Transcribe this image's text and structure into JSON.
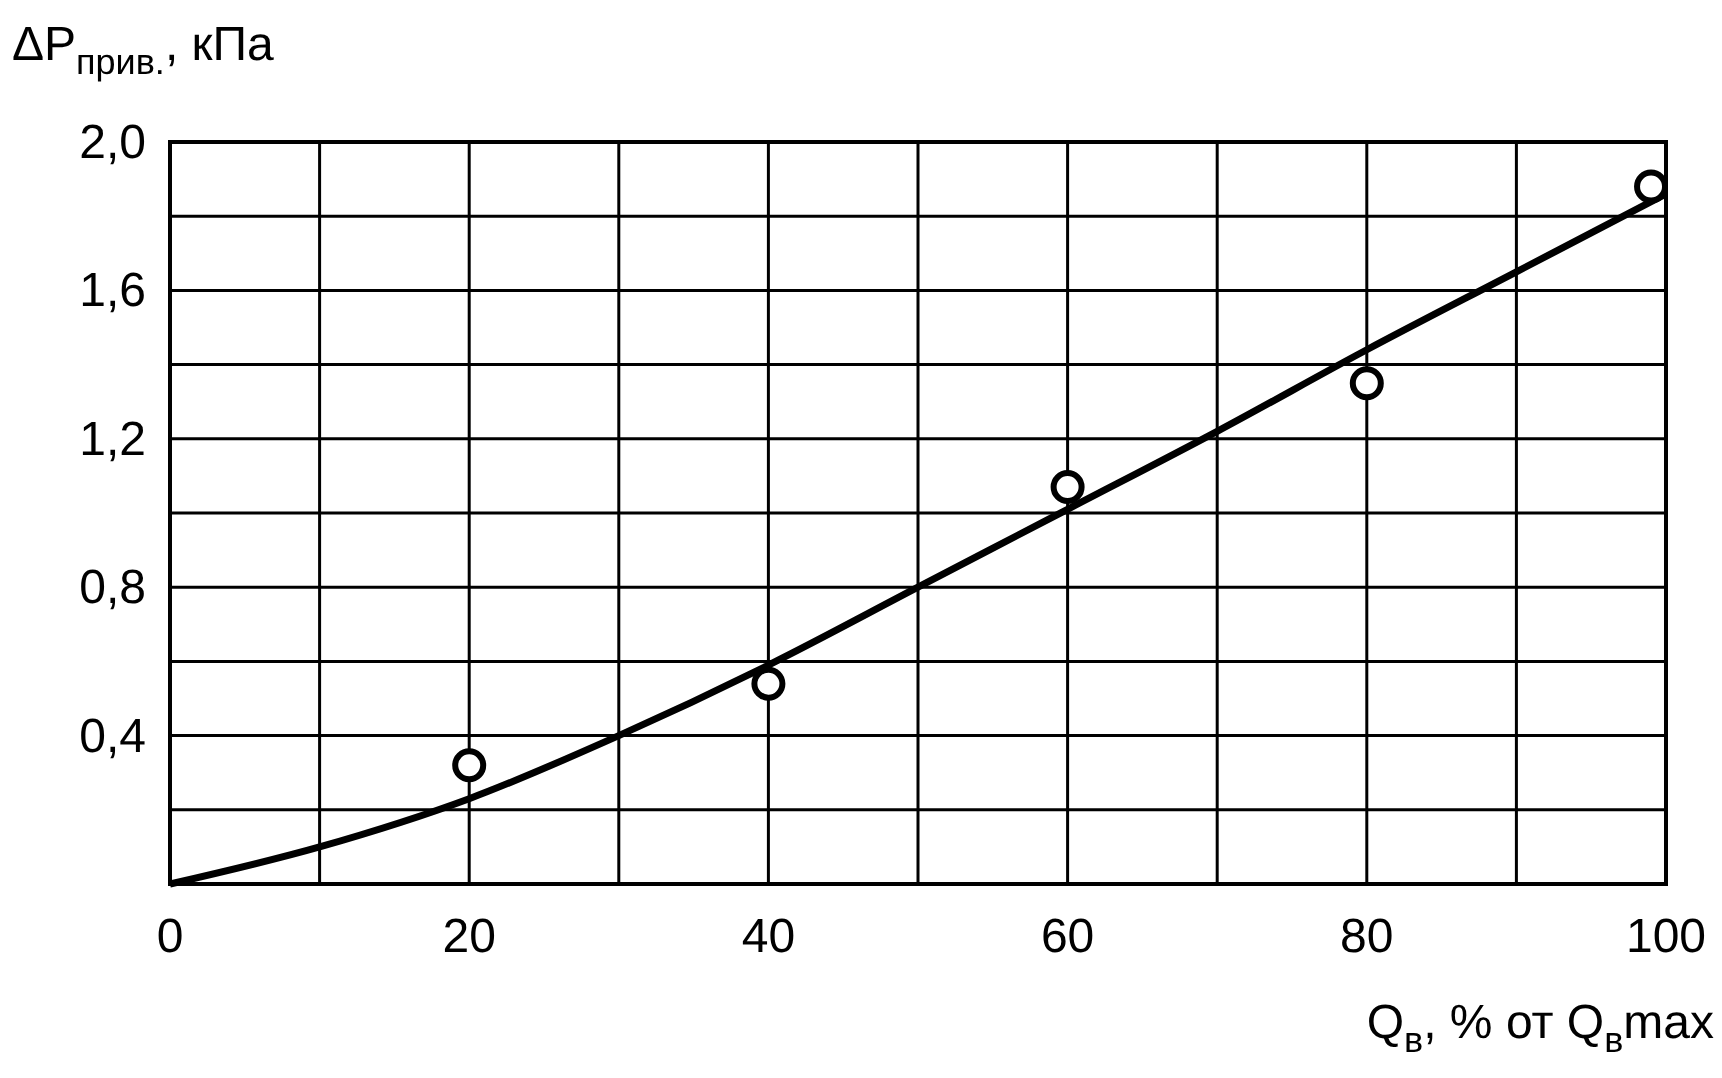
{
  "chart_data": {
    "type": "scatter",
    "xlabel": "Q$_{в}$, % от Q$_{в}$max",
    "ylabel": "ΔP$_{прив.}$, кПа",
    "xlim": [
      0,
      100
    ],
    "ylim": [
      0,
      2.0
    ],
    "xticks": [
      0,
      {
        "value": 10,
        "label": null
      },
      20,
      {
        "value": 30,
        "label": null
      },
      40,
      {
        "value": 50,
        "label": null
      },
      60,
      {
        "value": 70,
        "label": null
      },
      80,
      {
        "value": 90,
        "label": null
      },
      100
    ],
    "yticks": [
      {
        "value": 0,
        "label": null
      },
      {
        "value": 0.2,
        "label": null
      },
      {
        "value": 0.4,
        "label": "0,4"
      },
      {
        "value": 0.6,
        "label": null
      },
      {
        "value": 0.8,
        "label": "0,8"
      },
      {
        "value": 1.0,
        "label": null
      },
      {
        "value": 1.2,
        "label": "1,2"
      },
      {
        "value": 1.4,
        "label": null
      },
      {
        "value": 1.6,
        "label": "1,6"
      },
      {
        "value": 1.8,
        "label": null
      },
      {
        "value": 2.0,
        "label": "2,0"
      }
    ],
    "grid": true,
    "series": [
      {
        "marker": "circle",
        "color": "#000000",
        "x": [
          20,
          40,
          60,
          80,
          99
        ],
        "values": [
          0.32,
          0.54,
          1.07,
          1.35,
          1.88
        ]
      },
      {
        "type": "line",
        "color": "#000000",
        "x": [
          0,
          10,
          20,
          30,
          40,
          50,
          60,
          70,
          80,
          90,
          100
        ],
        "values": [
          0,
          0.1,
          0.23,
          0.4,
          0.59,
          0.8,
          1.01,
          1.22,
          1.44,
          1.65,
          1.86
        ]
      }
    ]
  }
}
